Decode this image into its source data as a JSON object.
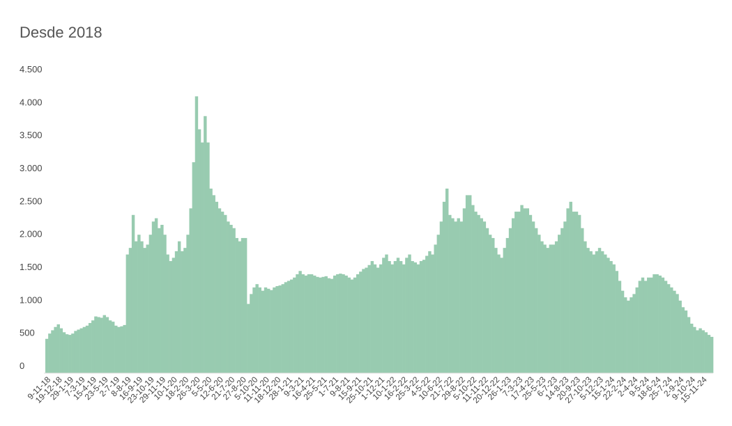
{
  "chart_data": {
    "type": "bar",
    "title": "Desde 2018",
    "color": "#98cbb0",
    "ylim": [
      0,
      4500
    ],
    "yticks": [
      0,
      500,
      {
        "value": 1000,
        "label": "1.000"
      },
      {
        "value": 1500,
        "label": "1.500"
      },
      {
        "value": 2000,
        "label": "2.000"
      },
      {
        "value": 2500,
        "label": "2.500"
      },
      {
        "value": 3000,
        "label": "3.000"
      },
      {
        "value": 3500,
        "label": "3.500"
      },
      {
        "value": 4000,
        "label": "4.000"
      },
      {
        "value": 4500,
        "label": "4.500"
      }
    ],
    "categories": [
      "9-11-18",
      null,
      null,
      null,
      "19-12-18",
      null,
      null,
      null,
      "29-1-19",
      null,
      null,
      null,
      "7-3-19",
      null,
      null,
      null,
      "15-4-19",
      null,
      null,
      null,
      "23-5-19",
      null,
      null,
      null,
      "2-7-19",
      null,
      null,
      null,
      "8-8-19",
      null,
      null,
      null,
      "16-9-19",
      null,
      null,
      null,
      "23-10-19",
      null,
      null,
      null,
      "29-11-19",
      null,
      null,
      null,
      "10-1-20",
      null,
      null,
      null,
      "18-2-20",
      null,
      null,
      null,
      "26-3-20",
      null,
      null,
      null,
      "5-5-20",
      null,
      null,
      null,
      "12-6-20",
      null,
      null,
      null,
      "21-7-20",
      null,
      null,
      null,
      "27-8-20",
      null,
      null,
      null,
      "5-10-20",
      null,
      null,
      null,
      "11-11-20",
      null,
      null,
      null,
      "18-12-20",
      null,
      null,
      null,
      "28-1-21",
      null,
      null,
      null,
      "9-3-21",
      null,
      null,
      null,
      "16-4-21",
      null,
      null,
      null,
      "25-5-21",
      null,
      null,
      null,
      "1-7-21",
      null,
      null,
      null,
      "9-8-21",
      null,
      null,
      null,
      "15-9-21",
      null,
      null,
      null,
      "25-10-21",
      null,
      null,
      null,
      "1-12-21",
      null,
      null,
      null,
      "10-1-22",
      null,
      null,
      null,
      "16-2-22",
      null,
      null,
      null,
      "25-3-22",
      null,
      null,
      null,
      "4-5-22",
      null,
      null,
      null,
      "10-6-22",
      null,
      null,
      null,
      "21-7-22",
      null,
      null,
      null,
      "29-8-22",
      null,
      null,
      null,
      "5-10-22",
      null,
      null,
      null,
      "11-11-22",
      null,
      null,
      null,
      "20-12-22",
      null,
      null,
      null,
      "26-1-23",
      null,
      null,
      null,
      "7-3-23",
      null,
      null,
      null,
      "17-4-23",
      null,
      null,
      null,
      "25-5-23",
      null,
      null,
      null,
      "6-7-23",
      null,
      null,
      null,
      "14-8-23",
      null,
      null,
      null,
      "20-9-23",
      null,
      null,
      null,
      "27-10-23",
      null,
      null,
      null,
      "5-12-23",
      null,
      null,
      null,
      "15-1-24",
      null,
      null,
      null,
      "22-2-24",
      null,
      null,
      null,
      "2-4-24",
      null,
      null,
      null,
      "9-5-24",
      null,
      null,
      null,
      "18-6-24",
      null,
      null,
      null,
      "25-7-24",
      null,
      null,
      null,
      "2-9-24",
      null,
      null,
      null,
      "9-10-24",
      null,
      null,
      null,
      "15-11-24",
      null,
      null,
      null
    ],
    "values": [
      520,
      600,
      650,
      700,
      740,
      680,
      620,
      590,
      580,
      600,
      640,
      660,
      680,
      700,
      720,
      760,
      800,
      860,
      850,
      840,
      880,
      850,
      800,
      780,
      720,
      700,
      710,
      730,
      1800,
      1900,
      2400,
      2000,
      2100,
      2000,
      1900,
      1950,
      2100,
      2300,
      2350,
      2200,
      2250,
      2100,
      1800,
      1700,
      1750,
      1850,
      2000,
      1850,
      1900,
      2100,
      2500,
      3200,
      4200,
      3700,
      3500,
      3900,
      3500,
      2800,
      2700,
      2600,
      2500,
      2450,
      2400,
      2300,
      2250,
      2200,
      2050,
      2000,
      2050,
      2050,
      1050,
      1200,
      1300,
      1350,
      1300,
      1250,
      1300,
      1280,
      1260,
      1300,
      1320,
      1330,
      1350,
      1380,
      1400,
      1420,
      1450,
      1500,
      1550,
      1500,
      1480,
      1500,
      1500,
      1480,
      1460,
      1450,
      1460,
      1470,
      1440,
      1430,
      1480,
      1500,
      1510,
      1500,
      1480,
      1450,
      1420,
      1450,
      1500,
      1540,
      1580,
      1600,
      1640,
      1700,
      1650,
      1600,
      1650,
      1750,
      1800,
      1700,
      1650,
      1700,
      1750,
      1700,
      1650,
      1750,
      1800,
      1700,
      1680,
      1650,
      1700,
      1720,
      1780,
      1850,
      1800,
      1950,
      2100,
      2300,
      2600,
      2800,
      2400,
      2350,
      2300,
      2350,
      2300,
      2500,
      2700,
      2700,
      2550,
      2450,
      2400,
      2350,
      2300,
      2200,
      2100,
      2050,
      1900,
      1800,
      1750,
      1900,
      2050,
      2200,
      2350,
      2450,
      2450,
      2550,
      2500,
      2500,
      2400,
      2300,
      2200,
      2100,
      2000,
      1950,
      1900,
      1950,
      1950,
      2000,
      2100,
      2200,
      2300,
      2500,
      2600,
      2450,
      2450,
      2400,
      2200,
      2000,
      1900,
      1850,
      1800,
      1850,
      1900,
      1850,
      1800,
      1750,
      1700,
      1650,
      1550,
      1400,
      1250,
      1150,
      1100,
      1150,
      1200,
      1300,
      1400,
      1450,
      1400,
      1450,
      1450,
      1500,
      1500,
      1480,
      1450,
      1400,
      1350,
      1300,
      1250,
      1200,
      1100,
      1000,
      950,
      850,
      750,
      700,
      650,
      680,
      650,
      620,
      580,
      550
    ]
  }
}
